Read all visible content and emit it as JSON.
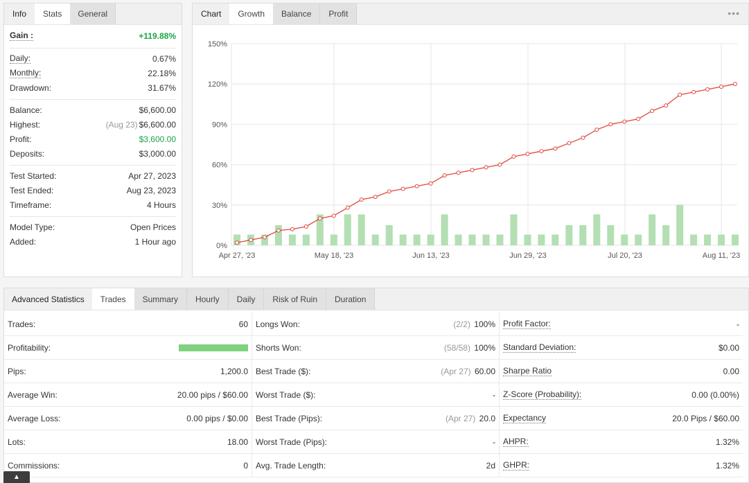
{
  "stats_tabs": [
    "Info",
    "Stats",
    "General"
  ],
  "stats": {
    "gain": {
      "label": "Gain :",
      "value": "+119.88%"
    },
    "daily": {
      "label": "Daily:",
      "value": "0.67%"
    },
    "monthly": {
      "label": "Monthly:",
      "value": "22.18%"
    },
    "drawdown": {
      "label": "Drawdown:",
      "value": "31.67%"
    },
    "balance": {
      "label": "Balance:",
      "value": "$6,600.00"
    },
    "highest": {
      "label": "Highest:",
      "note": "(Aug 23)",
      "value": "$6,600.00"
    },
    "profit": {
      "label": "Profit:",
      "value": "$3,600.00"
    },
    "deposits": {
      "label": "Deposits:",
      "value": "$3,000.00"
    },
    "test_started": {
      "label": "Test Started:",
      "value": "Apr 27, 2023"
    },
    "test_ended": {
      "label": "Test Ended:",
      "value": "Aug 23, 2023"
    },
    "timeframe": {
      "label": "Timeframe:",
      "value": "4 Hours"
    },
    "model_type": {
      "label": "Model Type:",
      "value": "Open Prices"
    },
    "added": {
      "label": "Added:",
      "value": "1 Hour ago"
    }
  },
  "chart_tabs": [
    "Chart",
    "Growth",
    "Balance",
    "Profit"
  ],
  "menu_icon": "more-dots-icon",
  "chart_data": {
    "type": "line",
    "ylim": [
      0,
      150
    ],
    "y_ticks": [
      "0%",
      "30%",
      "60%",
      "90%",
      "120%",
      "150%"
    ],
    "x_ticks": [
      "Apr 27, '23",
      "May 18, '23",
      "Jun 13, '23",
      "Jun 29, '23",
      "Jul 20, '23",
      "Aug 11, '23"
    ],
    "line_color": "#e0463c",
    "bar_color": "#b3dfb3",
    "growth": [
      2,
      4,
      6,
      11,
      12,
      14,
      20,
      22,
      28,
      34,
      36,
      40,
      42,
      44,
      46,
      52,
      54,
      56,
      58,
      60,
      66,
      68,
      70,
      72,
      76,
      80,
      86,
      90,
      92,
      94,
      100,
      104,
      112,
      114,
      116,
      118,
      120
    ],
    "bars": [
      8,
      8,
      8,
      15,
      8,
      8,
      23,
      8,
      23,
      23,
      8,
      15,
      8,
      8,
      8,
      23,
      8,
      8,
      8,
      8,
      23,
      8,
      8,
      8,
      15,
      15,
      23,
      15,
      8,
      8,
      23,
      15,
      30,
      8,
      8,
      8,
      8
    ]
  },
  "adv_tabs": [
    "Advanced Statistics",
    "Trades",
    "Summary",
    "Hourly",
    "Daily",
    "Risk of Ruin",
    "Duration"
  ],
  "adv": {
    "col1": [
      {
        "label": "Trades:",
        "value": "60"
      },
      {
        "label": "Profitability:",
        "value": "",
        "bar": 1.0
      },
      {
        "label": "Pips:",
        "value": "1,200.0"
      },
      {
        "label": "Average Win:",
        "value": "20.00 pips / $60.00"
      },
      {
        "label": "Average Loss:",
        "value": "0.00 pips / $0.00"
      },
      {
        "label": "Lots:",
        "value": "18.00"
      },
      {
        "label": "Commissions:",
        "value": "0"
      }
    ],
    "col2": [
      {
        "label": "Longs Won:",
        "note": "(2/2)",
        "value": "100%"
      },
      {
        "label": "Shorts Won:",
        "note": "(58/58)",
        "value": "100%"
      },
      {
        "label": "Best Trade ($):",
        "note": "(Apr 27)",
        "value": "60.00"
      },
      {
        "label": "Worst Trade ($):",
        "note": "",
        "value": "-"
      },
      {
        "label": "Best Trade (Pips):",
        "note": "(Apr 27)",
        "value": "20.0"
      },
      {
        "label": "Worst Trade (Pips):",
        "note": "",
        "value": "-"
      },
      {
        "label": "Avg. Trade Length:",
        "note": "",
        "value": "2d"
      }
    ],
    "col3": [
      {
        "label": "Profit Factor:",
        "value": "-"
      },
      {
        "label": "Standard Deviation:",
        "value": "$0.00"
      },
      {
        "label": "Sharpe Ratio",
        "value": "0.00"
      },
      {
        "label": "Z-Score (Probability):",
        "value": "0.00 (0.00%)"
      },
      {
        "label": "Expectancy",
        "value": "20.0 Pips / $60.00"
      },
      {
        "label": "AHPR:",
        "value": "1.32%"
      },
      {
        "label": "GHPR:",
        "value": "1.32%"
      }
    ]
  },
  "scroll_up_icon": "chevron-up-icon"
}
